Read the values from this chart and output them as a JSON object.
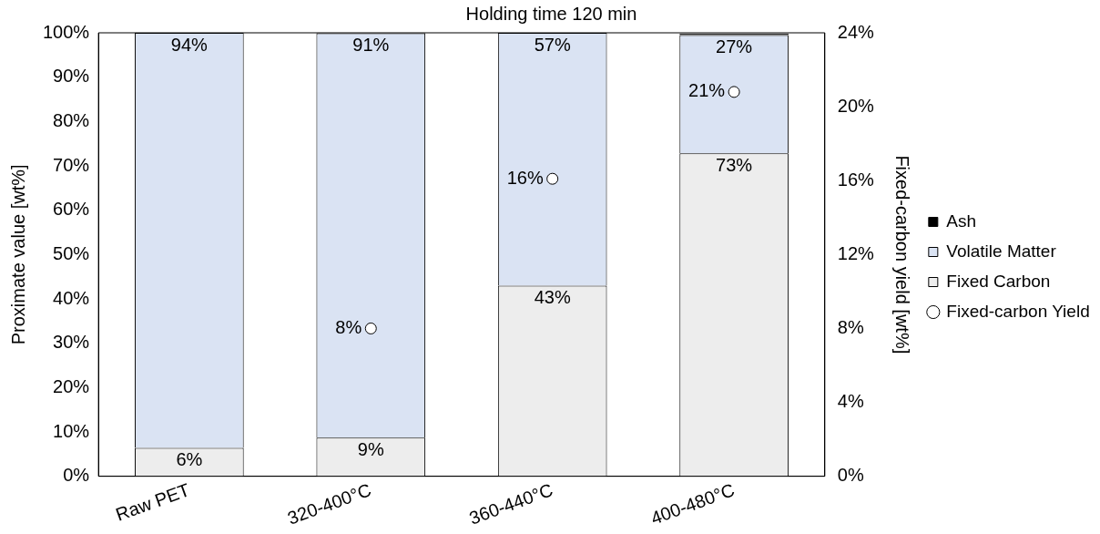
{
  "chart_data": {
    "type": "bar",
    "title": "Holding time 120 min",
    "ylabel": "Proximate value [wt%]",
    "y2label": "Fixed-carbon yield [wt%]",
    "categories": [
      "Raw PET",
      "320-400°C",
      "360-440°C",
      "400-480°C"
    ],
    "stacked": true,
    "series": [
      {
        "name": "Fixed Carbon",
        "color": "#ededed",
        "values": [
          6.4,
          8.7,
          43,
          72.8
        ],
        "value_labels": [
          "6%",
          "9%",
          "43%",
          "73%"
        ]
      },
      {
        "name": "Volatile Matter",
        "color": "#dae3f3",
        "values": [
          93.6,
          91.2,
          57,
          26.7
        ],
        "value_labels": [
          "94%",
          "91%",
          "57%",
          "27%"
        ]
      },
      {
        "name": "Ash",
        "color": "#000000",
        "values": [
          0,
          0.1,
          0,
          0.3
        ]
      },
      {
        "name": "Fixed-carbon Yield",
        "type": "scatter",
        "axis": "y2",
        "color": "#ffffff",
        "values": [
          null,
          8,
          16.1,
          20.8
        ],
        "value_labels": [
          null,
          "8%",
          "16%",
          "21%"
        ]
      }
    ],
    "ylim": [
      0,
      100
    ],
    "yticks": [
      {
        "value": 0,
        "label": "0%"
      },
      {
        "value": 10,
        "label": "10%"
      },
      {
        "value": 20,
        "label": "20%"
      },
      {
        "value": 30,
        "label": "30%"
      },
      {
        "value": 40,
        "label": "40%"
      },
      {
        "value": 50,
        "label": "50%"
      },
      {
        "value": 60,
        "label": "60%"
      },
      {
        "value": 70,
        "label": "70%"
      },
      {
        "value": 80,
        "label": "80%"
      },
      {
        "value": 90,
        "label": "90%"
      },
      {
        "value": 100,
        "label": "100%"
      }
    ],
    "y2lim": [
      0,
      24
    ],
    "y2ticks": [
      {
        "value": 0,
        "label": "0%"
      },
      {
        "value": 4,
        "label": "4%"
      },
      {
        "value": 8,
        "label": "8%"
      },
      {
        "value": 12,
        "label": "12%"
      },
      {
        "value": 16,
        "label": "16%"
      },
      {
        "value": 20,
        "label": "20%"
      },
      {
        "value": 24,
        "label": "24%"
      }
    ],
    "grid": false,
    "legend": "right",
    "marker": "circle"
  }
}
